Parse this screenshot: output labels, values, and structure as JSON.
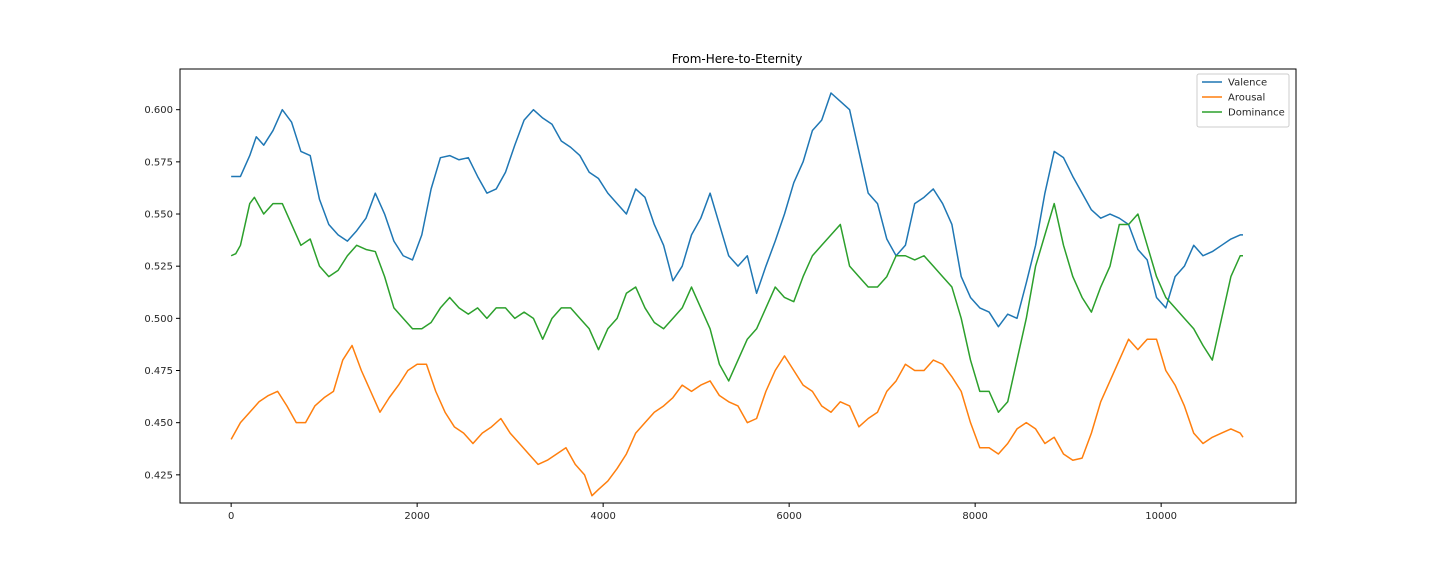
{
  "chart_data": {
    "type": "line",
    "title": "From-Here-to-Eternity",
    "xlabel": "",
    "ylabel": "",
    "xlim": [
      -550,
      11450
    ],
    "ylim": [
      0.4115,
      0.6195
    ],
    "x_ticks": [
      0,
      2000,
      4000,
      6000,
      8000,
      10000
    ],
    "x_tick_labels": [
      "0",
      "2000",
      "4000",
      "6000",
      "8000",
      "10000"
    ],
    "y_ticks": [
      0.425,
      0.45,
      0.475,
      0.5,
      0.525,
      0.55,
      0.575,
      0.6
    ],
    "y_tick_labels": [
      "0.425",
      "0.450",
      "0.475",
      "0.500",
      "0.525",
      "0.550",
      "0.575",
      "0.600"
    ],
    "grid": false,
    "legend_position": "top-right",
    "series": [
      {
        "name": "Valence",
        "color": "#1f77b4",
        "x": [
          0,
          100,
          200,
          270,
          350,
          450,
          550,
          650,
          750,
          850,
          950,
          1050,
          1150,
          1250,
          1350,
          1450,
          1550,
          1650,
          1750,
          1850,
          1950,
          2050,
          2150,
          2250,
          2350,
          2450,
          2550,
          2650,
          2750,
          2850,
          2950,
          3050,
          3150,
          3250,
          3350,
          3450,
          3550,
          3650,
          3750,
          3850,
          3950,
          4050,
          4150,
          4250,
          4350,
          4450,
          4550,
          4650,
          4750,
          4850,
          4950,
          5050,
          5150,
          5250,
          5350,
          5450,
          5550,
          5650,
          5750,
          5850,
          5950,
          6050,
          6150,
          6250,
          6350,
          6450,
          6550,
          6650,
          6750,
          6850,
          6950,
          7050,
          7150,
          7250,
          7350,
          7450,
          7550,
          7650,
          7750,
          7850,
          7950,
          8050,
          8150,
          8250,
          8350,
          8450,
          8550,
          8650,
          8750,
          8850,
          8950,
          9050,
          9150,
          9250,
          9350,
          9450,
          9550,
          9650,
          9750,
          9850,
          9950,
          10050,
          10150,
          10250,
          10350,
          10450,
          10550,
          10650,
          10750,
          10850,
          10880
        ],
        "y": [
          0.568,
          0.568,
          0.578,
          0.587,
          0.583,
          0.59,
          0.6,
          0.594,
          0.58,
          0.578,
          0.557,
          0.545,
          0.54,
          0.537,
          0.542,
          0.548,
          0.56,
          0.55,
          0.537,
          0.53,
          0.528,
          0.54,
          0.562,
          0.577,
          0.578,
          0.576,
          0.577,
          0.568,
          0.56,
          0.562,
          0.57,
          0.583,
          0.595,
          0.6,
          0.596,
          0.593,
          0.585,
          0.582,
          0.578,
          0.57,
          0.567,
          0.56,
          0.555,
          0.55,
          0.562,
          0.558,
          0.545,
          0.535,
          0.518,
          0.525,
          0.54,
          0.548,
          0.56,
          0.545,
          0.53,
          0.525,
          0.53,
          0.512,
          0.525,
          0.537,
          0.55,
          0.565,
          0.575,
          0.59,
          0.595,
          0.608,
          0.604,
          0.6,
          0.58,
          0.56,
          0.555,
          0.538,
          0.53,
          0.535,
          0.555,
          0.558,
          0.562,
          0.555,
          0.545,
          0.52,
          0.51,
          0.505,
          0.503,
          0.496,
          0.502,
          0.5,
          0.517,
          0.535,
          0.56,
          0.58,
          0.577,
          0.568,
          0.56,
          0.552,
          0.548,
          0.55,
          0.548,
          0.545,
          0.533,
          0.528,
          0.51,
          0.505,
          0.52,
          0.525,
          0.535,
          0.53,
          0.532,
          0.535,
          0.538,
          0.54,
          0.54
        ]
      },
      {
        "name": "Arousal",
        "color": "#ff7f0e",
        "x": [
          0,
          100,
          200,
          300,
          400,
          500,
          600,
          700,
          800,
          900,
          1000,
          1100,
          1200,
          1300,
          1400,
          1500,
          1600,
          1700,
          1800,
          1900,
          2000,
          2100,
          2200,
          2300,
          2400,
          2500,
          2600,
          2700,
          2800,
          2900,
          3000,
          3100,
          3200,
          3300,
          3400,
          3500,
          3600,
          3700,
          3800,
          3880,
          3950,
          4050,
          4150,
          4250,
          4350,
          4450,
          4550,
          4650,
          4750,
          4850,
          4950,
          5050,
          5150,
          5250,
          5350,
          5450,
          5550,
          5650,
          5750,
          5850,
          5950,
          6050,
          6150,
          6250,
          6350,
          6450,
          6550,
          6650,
          6750,
          6850,
          6950,
          7050,
          7150,
          7250,
          7350,
          7450,
          7550,
          7650,
          7750,
          7850,
          7950,
          8050,
          8150,
          8250,
          8350,
          8450,
          8550,
          8650,
          8750,
          8850,
          8950,
          9050,
          9150,
          9250,
          9350,
          9450,
          9550,
          9650,
          9750,
          9850,
          9950,
          10050,
          10150,
          10250,
          10350,
          10450,
          10550,
          10650,
          10750,
          10850,
          10880
        ],
        "y": [
          0.442,
          0.45,
          0.455,
          0.46,
          0.463,
          0.465,
          0.458,
          0.45,
          0.45,
          0.458,
          0.462,
          0.465,
          0.48,
          0.487,
          0.475,
          0.465,
          0.455,
          0.462,
          0.468,
          0.475,
          0.478,
          0.478,
          0.465,
          0.455,
          0.448,
          0.445,
          0.44,
          0.445,
          0.448,
          0.452,
          0.445,
          0.44,
          0.435,
          0.43,
          0.432,
          0.435,
          0.438,
          0.43,
          0.425,
          0.415,
          0.418,
          0.422,
          0.428,
          0.435,
          0.445,
          0.45,
          0.455,
          0.458,
          0.462,
          0.468,
          0.465,
          0.468,
          0.47,
          0.463,
          0.46,
          0.458,
          0.45,
          0.452,
          0.465,
          0.475,
          0.482,
          0.475,
          0.468,
          0.465,
          0.458,
          0.455,
          0.46,
          0.458,
          0.448,
          0.452,
          0.455,
          0.465,
          0.47,
          0.478,
          0.475,
          0.475,
          0.48,
          0.478,
          0.472,
          0.465,
          0.45,
          0.438,
          0.438,
          0.435,
          0.44,
          0.447,
          0.45,
          0.447,
          0.44,
          0.443,
          0.435,
          0.432,
          0.433,
          0.445,
          0.46,
          0.47,
          0.48,
          0.49,
          0.485,
          0.49,
          0.49,
          0.475,
          0.468,
          0.458,
          0.445,
          0.44,
          0.443,
          0.445,
          0.447,
          0.445,
          0.443
        ]
      },
      {
        "name": "Dominance",
        "color": "#2ca02c",
        "x": [
          0,
          50,
          100,
          150,
          200,
          250,
          350,
          450,
          550,
          650,
          750,
          850,
          950,
          1050,
          1150,
          1250,
          1350,
          1450,
          1550,
          1650,
          1750,
          1850,
          1950,
          2050,
          2150,
          2250,
          2350,
          2450,
          2550,
          2650,
          2750,
          2850,
          2950,
          3050,
          3150,
          3250,
          3350,
          3450,
          3550,
          3650,
          3750,
          3850,
          3950,
          4050,
          4150,
          4250,
          4350,
          4450,
          4550,
          4650,
          4750,
          4850,
          4950,
          5050,
          5150,
          5250,
          5350,
          5450,
          5550,
          5650,
          5750,
          5850,
          5950,
          6050,
          6150,
          6250,
          6350,
          6450,
          6550,
          6650,
          6750,
          6850,
          6950,
          7050,
          7150,
          7250,
          7350,
          7450,
          7550,
          7650,
          7750,
          7850,
          7950,
          8050,
          8150,
          8250,
          8350,
          8450,
          8550,
          8650,
          8750,
          8850,
          8950,
          9050,
          9150,
          9250,
          9350,
          9450,
          9550,
          9650,
          9750,
          9850,
          9950,
          10050,
          10150,
          10250,
          10350,
          10450,
          10550,
          10650,
          10750,
          10850,
          10880
        ],
        "y": [
          0.53,
          0.531,
          0.535,
          0.545,
          0.555,
          0.558,
          0.55,
          0.555,
          0.555,
          0.545,
          0.535,
          0.538,
          0.525,
          0.52,
          0.523,
          0.53,
          0.535,
          0.533,
          0.532,
          0.52,
          0.505,
          0.5,
          0.495,
          0.495,
          0.498,
          0.505,
          0.51,
          0.505,
          0.502,
          0.505,
          0.5,
          0.505,
          0.505,
          0.5,
          0.503,
          0.5,
          0.49,
          0.5,
          0.505,
          0.505,
          0.5,
          0.495,
          0.485,
          0.495,
          0.5,
          0.512,
          0.515,
          0.505,
          0.498,
          0.495,
          0.5,
          0.505,
          0.515,
          0.505,
          0.495,
          0.478,
          0.47,
          0.48,
          0.49,
          0.495,
          0.505,
          0.515,
          0.51,
          0.508,
          0.52,
          0.53,
          0.535,
          0.54,
          0.545,
          0.525,
          0.52,
          0.515,
          0.515,
          0.52,
          0.53,
          0.53,
          0.528,
          0.53,
          0.525,
          0.52,
          0.515,
          0.5,
          0.48,
          0.465,
          0.465,
          0.455,
          0.46,
          0.48,
          0.5,
          0.525,
          0.54,
          0.555,
          0.535,
          0.52,
          0.51,
          0.503,
          0.515,
          0.525,
          0.545,
          0.545,
          0.55,
          0.535,
          0.52,
          0.51,
          0.505,
          0.5,
          0.495,
          0.487,
          0.48,
          0.5,
          0.52,
          0.53,
          0.53
        ]
      }
    ]
  }
}
